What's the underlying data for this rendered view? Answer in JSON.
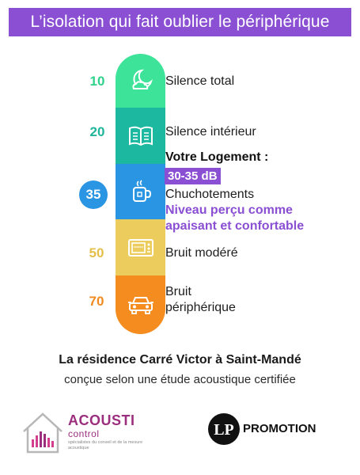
{
  "header": {
    "title": "L’isolation qui fait oublier le périphérique"
  },
  "scale": [
    {
      "level": "10",
      "label": "Silence total",
      "icon": "moon-cloud-icon",
      "color": "#3ee39a"
    },
    {
      "level": "20",
      "label": "Silence intérieur",
      "icon": "open-book-icon",
      "color": "#1cb8a0"
    },
    {
      "level": "35",
      "label": "Chuchotements",
      "icon": "mug-icon",
      "color": "#2a95e3"
    },
    {
      "level": "50",
      "label": "Bruit modéré",
      "icon": "microwave-icon",
      "color": "#ebcc5c"
    },
    {
      "level": "70",
      "label": "Bruit\npériphérique",
      "icon": "car-icon",
      "color": "#f48c1f"
    }
  ],
  "highlight": {
    "heading": "Votre Logement :",
    "range": "30-35 dB",
    "description": "Niveau perçu comme apaisant et confortable"
  },
  "footer": {
    "residence": "La résidence Carré Victor à Saint-Mandé",
    "subtitle": "conçue selon une étude acoustique certifiée"
  },
  "logos": {
    "acousti": {
      "name": "ACOUSTI",
      "sub": "control",
      "tagline": "spécialistes du conseil et de la mesure acoustique"
    },
    "promotion": {
      "monogram": "LP",
      "name": "PROMOTION"
    }
  },
  "colors": {
    "accent": "#8a4fd3",
    "mag": "#9b2f7e"
  }
}
